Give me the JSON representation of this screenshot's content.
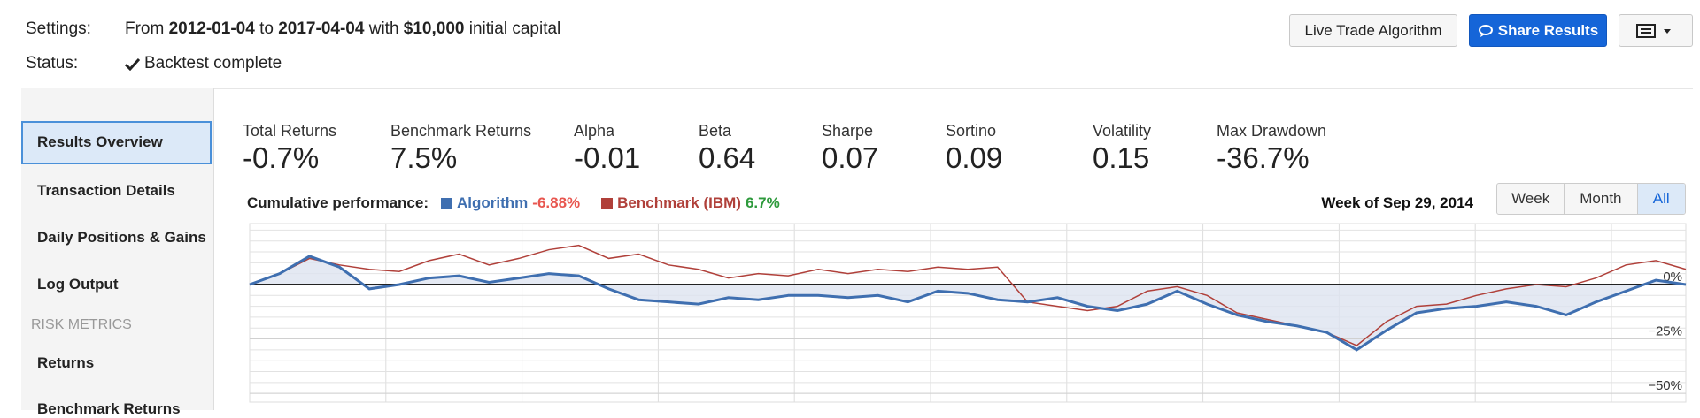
{
  "header": {
    "settings_label": "Settings:",
    "from_word": "From",
    "start": "2012-01-04",
    "to_word": "to",
    "end": "2017-04-04",
    "with_word": "with",
    "capital": "$10,000",
    "capital_suffix": "initial capital",
    "status_label": "Status:",
    "status": "Backtest complete",
    "buttons": [
      "Live Trade Algorithm",
      "Share Results"
    ]
  },
  "sidebar": {
    "items": [
      "Results Overview",
      "Transaction Details",
      "Daily Positions & Gains",
      "Log Output"
    ],
    "selected": "Results Overview",
    "section": "RISK METRICS",
    "section_items": [
      "Returns",
      "Benchmark Returns"
    ]
  },
  "metrics": [
    {
      "label": "Total Returns",
      "value": "-0.7%"
    },
    {
      "label": "Benchmark Returns",
      "value": "7.5%"
    },
    {
      "label": "Alpha",
      "value": "-0.01"
    },
    {
      "label": "Beta",
      "value": "0.64"
    },
    {
      "label": "Sharpe",
      "value": "0.07"
    },
    {
      "label": "Sortino",
      "value": "0.09"
    },
    {
      "label": "Volatility",
      "value": "0.15"
    },
    {
      "label": "Max Drawdown",
      "value": "-36.7%"
    }
  ],
  "chart": {
    "type": "line",
    "title": "Cumulative performance:",
    "hover_label": "Week of Sep 29, 2014",
    "ranges": [
      "Week",
      "Month",
      "All"
    ],
    "selected_range": "All",
    "ylim": [
      -54,
      28
    ],
    "yticks": [
      {
        "value": 0,
        "label": "0%"
      },
      {
        "value": -25,
        "label": "−25%"
      },
      {
        "value": -50,
        "label": "−50%"
      }
    ],
    "grid_lines": [
      25,
      20,
      15,
      10,
      5,
      -5,
      -10,
      -15,
      -20,
      -25,
      -30,
      -35,
      -40,
      -45,
      -50
    ],
    "series": [
      {
        "name": "Algorithm",
        "color": "#3f6fb0",
        "fill": "#dde4f0",
        "return_label": "-6.88%",
        "return_color": "#e8564f",
        "values": [
          0,
          5,
          13,
          8,
          -2,
          0,
          3,
          4,
          1,
          3,
          5,
          4,
          -2,
          -7,
          -8,
          -9,
          -6,
          -7,
          -5,
          -5,
          -6,
          -5,
          -8,
          -3,
          -4,
          -7,
          -8,
          -6,
          -10,
          -12,
          -9,
          -3,
          -9,
          -14,
          -17,
          -19,
          -22,
          -30,
          -21,
          -13,
          -11,
          -10,
          -8,
          -10,
          -14,
          -8,
          -3,
          2,
          0
        ]
      },
      {
        "name": "Benchmark (IBM)",
        "color": "#b0403a",
        "return_label": "6.7%",
        "return_color": "#2e9a3c",
        "values": [
          0,
          5,
          12,
          9,
          7,
          6,
          11,
          14,
          9,
          12,
          16,
          18,
          12,
          14,
          9,
          7,
          3,
          5,
          4,
          7,
          5,
          7,
          6,
          8,
          7,
          8,
          -8,
          -10,
          -12,
          -10,
          -3,
          -1,
          -5,
          -13,
          -16,
          -19,
          -22,
          -28,
          -17,
          -10,
          -9,
          -5,
          -2,
          0,
          -1,
          3,
          9,
          11,
          7
        ]
      }
    ]
  }
}
